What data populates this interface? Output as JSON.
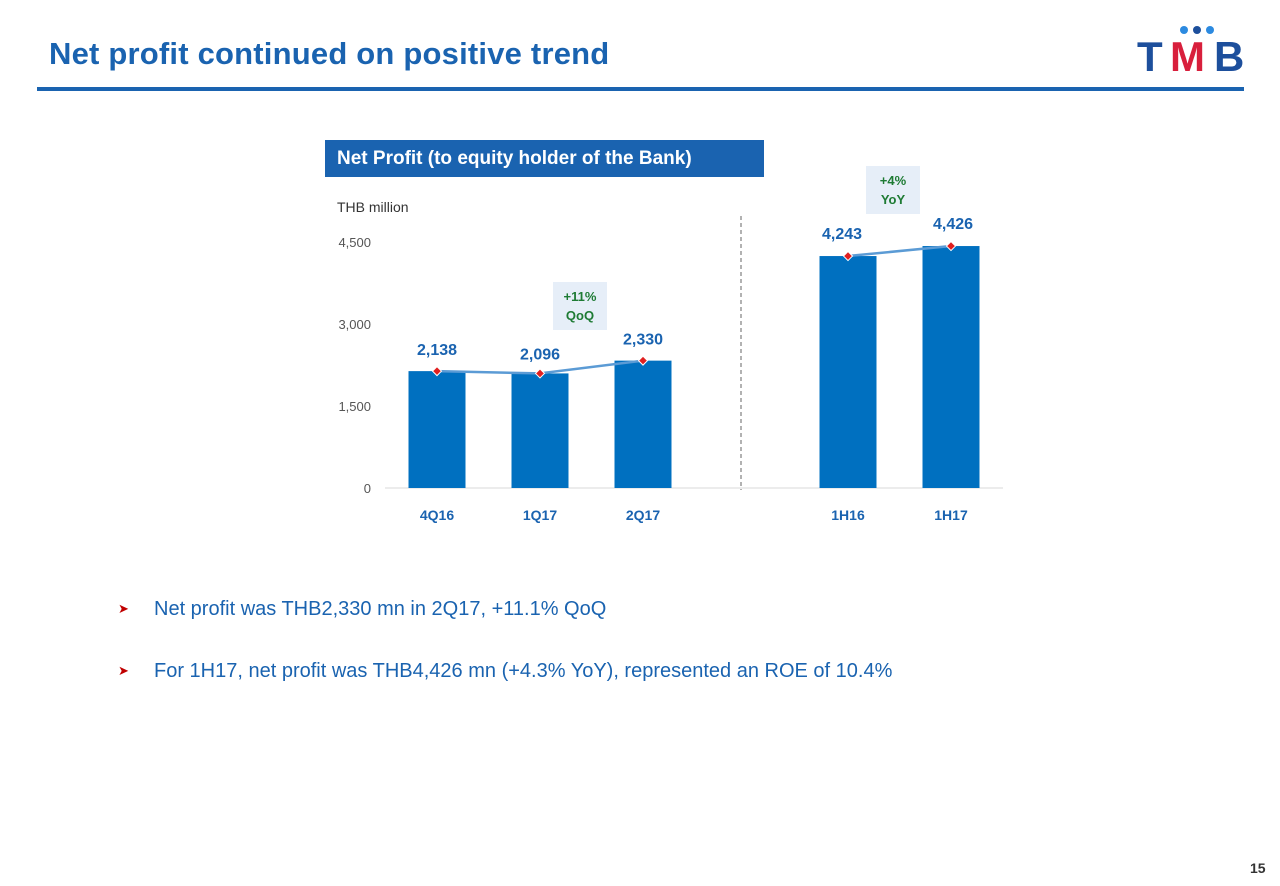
{
  "slide": {
    "title": "Net profit continued on positive trend",
    "page_number": "15",
    "logo": {
      "text": "TMB",
      "parts": [
        "T",
        "M",
        "B"
      ],
      "colors": [
        "#1d4f9c",
        "#d81f3c",
        "#1d4f9c"
      ]
    }
  },
  "chart_data": {
    "type": "bar",
    "title": "Net Profit (to equity holder of the Bank)",
    "unit_label": "THB million",
    "ylim": [
      0,
      4500
    ],
    "yticks": [
      0,
      1500,
      3000,
      4500
    ],
    "ytick_labels": [
      "0",
      "1,500",
      "3,000",
      "4,500"
    ],
    "groups": [
      {
        "categories": [
          "4Q16",
          "1Q17",
          "2Q17"
        ],
        "values": [
          2138,
          2096,
          2330
        ],
        "value_labels": [
          "2,138",
          "2,096",
          "2,330"
        ]
      },
      {
        "categories": [
          "1H16",
          "1H17"
        ],
        "values": [
          4243,
          4426
        ],
        "value_labels": [
          "4,243",
          "4,426"
        ]
      }
    ],
    "callouts": [
      {
        "line1": "+11%",
        "line2": "QoQ"
      },
      {
        "line1": "+4%",
        "line2": "YoY"
      }
    ],
    "colors": {
      "bar": "#0070c0",
      "trend_line": "#5b9bd5",
      "marker": "#e02020",
      "callout_bg": "#e6eef8",
      "callout_text": "#1e7b34"
    },
    "grid": false,
    "legend": "none",
    "separator": "dashed vertical line between quarterly and half-year groups"
  },
  "bullets": [
    {
      "icon": "arrowhead-bullet",
      "text": "Net profit was THB2,330 mn in 2Q17, +11.1% QoQ"
    },
    {
      "icon": "arrowhead-bullet",
      "text": "For 1H17, net profit was THB4,426 mn (+4.3% YoY), represented an ROE of 10.4%"
    }
  ]
}
